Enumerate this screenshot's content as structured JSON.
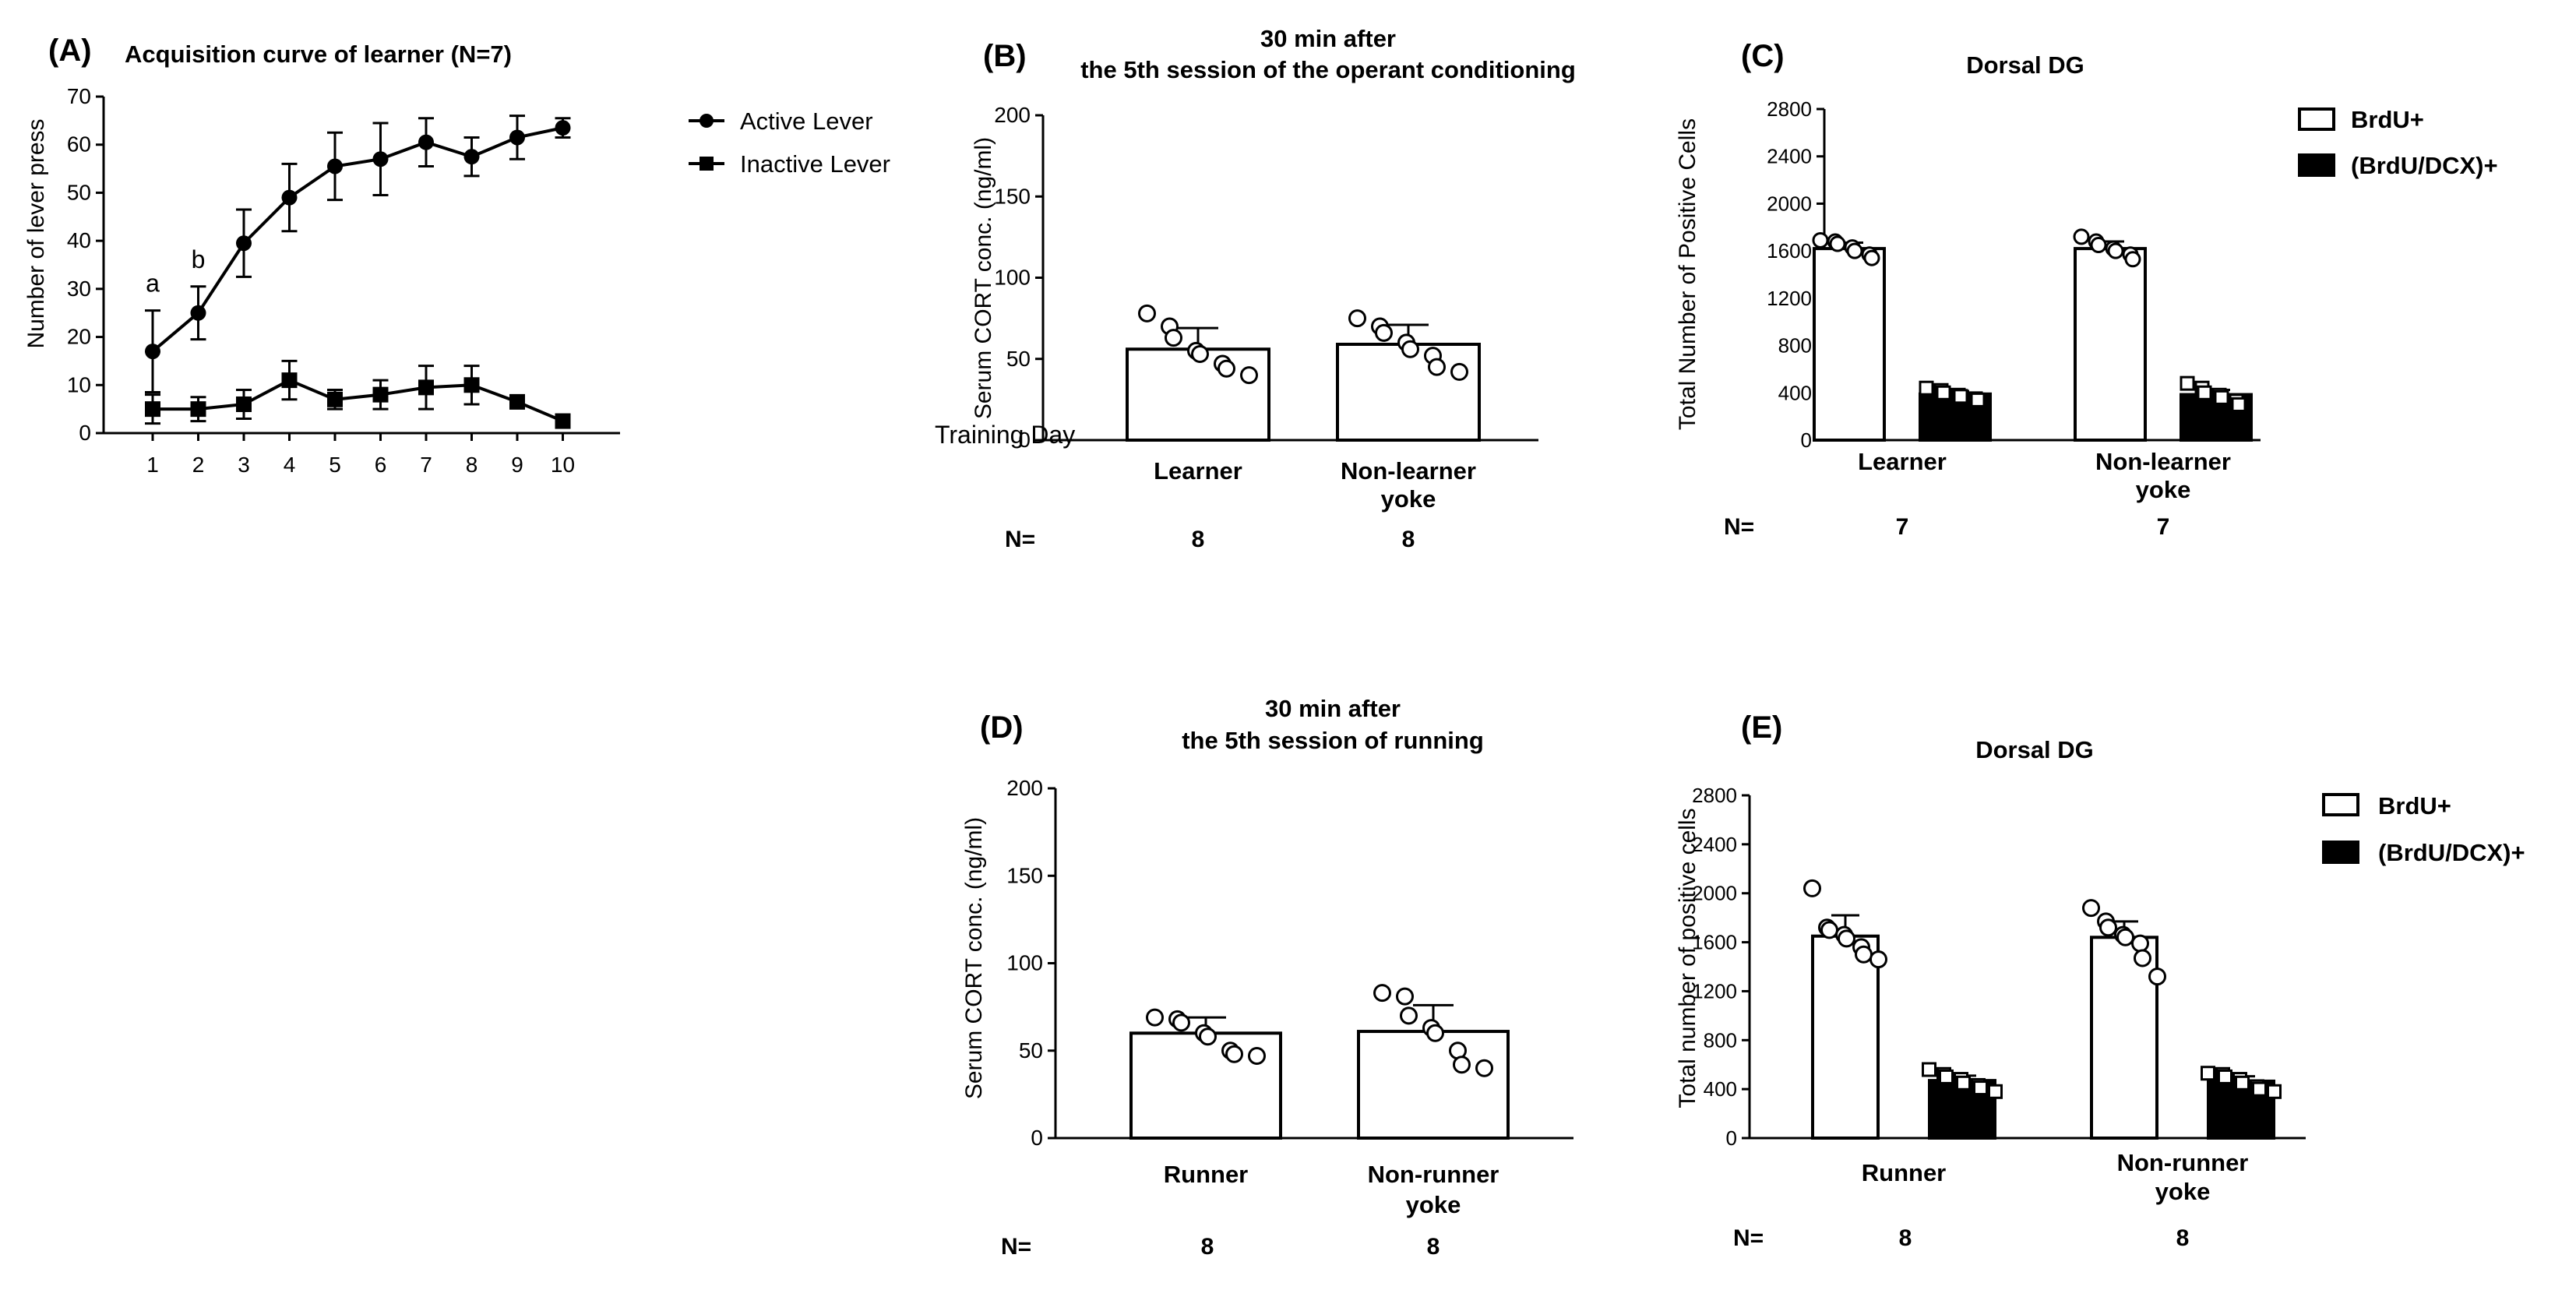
{
  "chart_data": [
    {
      "id": "A",
      "panel_label": "(A)",
      "type": "line",
      "title": "Acquisition curve of learner (N=7)",
      "xlabel": "Training Day",
      "ylabel": "Number of lever press",
      "x": [
        1,
        2,
        3,
        4,
        5,
        6,
        7,
        8,
        9,
        10
      ],
      "xticks": [
        "1",
        "2",
        "3",
        "4",
        "5",
        "6",
        "7",
        "8",
        "9",
        "10"
      ],
      "ylim": [
        0,
        70
      ],
      "yticks": [
        0,
        10,
        20,
        30,
        40,
        50,
        60,
        70
      ],
      "series": [
        {
          "name": "Active Lever",
          "marker": "circle",
          "values": [
            17,
            25,
            39.5,
            49,
            55.5,
            57,
            60.5,
            57.5,
            61.5,
            63.5
          ],
          "errors": [
            8.5,
            5.5,
            7,
            7,
            7,
            7.5,
            5,
            4,
            4.5,
            2
          ]
        },
        {
          "name": "Inactive Lever",
          "marker": "square",
          "values": [
            5,
            5,
            6,
            11,
            7,
            8,
            9.5,
            10,
            6.5,
            2.5
          ],
          "errors": [
            3,
            2.5,
            3,
            4,
            2,
            3,
            4.5,
            4,
            1,
            0.5
          ]
        }
      ],
      "annotations": [
        {
          "text": "a",
          "x": 1
        },
        {
          "text": "b",
          "x": 2
        }
      ]
    },
    {
      "id": "B",
      "panel_label": "(B)",
      "type": "bar",
      "title_lines": [
        "30 min after",
        "the 5th session of the operant conditioning"
      ],
      "ylabel": "Serum CORT conc. (ng/ml)",
      "ylim": [
        0,
        200
      ],
      "yticks": [
        0,
        50,
        100,
        150,
        200
      ],
      "categories": [
        [
          "Learner"
        ],
        [
          "Non-learner",
          "yoke"
        ]
      ],
      "values": [
        56,
        59
      ],
      "errors": [
        13,
        12
      ],
      "points": [
        [
          78,
          70,
          63,
          55,
          53,
          47,
          44,
          40
        ],
        [
          75,
          70,
          66,
          60,
          56,
          52,
          45,
          42
        ]
      ],
      "n_label": "N=",
      "n_values": [
        "8",
        "8"
      ]
    },
    {
      "id": "C",
      "panel_label": "(C)",
      "type": "bar",
      "title": "Dorsal DG",
      "ylabel": "Total Number of Positive Cells",
      "ylim": [
        0,
        2800
      ],
      "yticks": [
        0,
        400,
        800,
        1200,
        1600,
        2000,
        2400,
        2800
      ],
      "categories": [
        [
          "Learner"
        ],
        [
          "Non-learner",
          "yoke"
        ]
      ],
      "series": [
        {
          "name": "BrdU+",
          "fill": "#ffffff",
          "values": [
            1620,
            1620
          ],
          "errors": [
            50,
            60
          ],
          "points": [
            [
              1690,
              1680,
              1660,
              1630,
              1600,
              1570,
              1540
            ],
            [
              1720,
              1680,
              1650,
              1620,
              1600,
              1570,
              1530
            ]
          ]
        },
        {
          "name": "(BrdU/DCX)+",
          "fill": "#000000",
          "values": [
            390,
            385
          ],
          "errors": [
            25,
            40
          ],
          "points": [
            [
              440,
              420,
              400,
              380,
              370,
              350,
              340
            ],
            [
              480,
              440,
              400,
              380,
              360,
              330,
              300
            ]
          ]
        }
      ],
      "n_label": "N=",
      "n_values": [
        "7",
        "7"
      ]
    },
    {
      "id": "D",
      "panel_label": "(D)",
      "type": "bar",
      "title_lines": [
        "30 min after",
        "the 5th session of running"
      ],
      "ylabel": "Serum CORT conc. (ng/ml)",
      "ylim": [
        0,
        200
      ],
      "yticks": [
        0,
        50,
        100,
        150,
        200
      ],
      "categories": [
        [
          "Runner"
        ],
        [
          "Non-runner",
          "yoke"
        ]
      ],
      "values": [
        60,
        61
      ],
      "errors": [
        9,
        15
      ],
      "points": [
        [
          69,
          68,
          66,
          60,
          58,
          50,
          48,
          47
        ],
        [
          83,
          81,
          70,
          63,
          60,
          50,
          42,
          40
        ]
      ],
      "n_label": "N=",
      "n_values": [
        "8",
        "8"
      ]
    },
    {
      "id": "E",
      "panel_label": "(E)",
      "type": "bar",
      "title": "Dorsal DG",
      "ylabel": "Total number of positive cells",
      "ylim": [
        0,
        2800
      ],
      "yticks": [
        0,
        400,
        800,
        1200,
        1600,
        2000,
        2400,
        2800
      ],
      "categories": [
        [
          "Runner"
        ],
        [
          "Non-runner",
          "yoke"
        ]
      ],
      "series": [
        {
          "name": "BrdU+",
          "fill": "#ffffff",
          "values": [
            1650,
            1640
          ],
          "errors": [
            170,
            130
          ],
          "points": [
            [
              2040,
              1720,
              1700,
              1660,
              1630,
              1560,
              1500,
              1460
            ],
            [
              1880,
              1770,
              1720,
              1660,
              1640,
              1590,
              1470,
              1320
            ]
          ]
        },
        {
          "name": "(BrdU/DCX)+",
          "fill": "#000000",
          "values": [
            470,
            465
          ],
          "errors": [
            40,
            40
          ],
          "points": [
            [
              560,
              520,
              500,
              480,
              450,
              430,
              410,
              380
            ],
            [
              530,
              520,
              500,
              480,
              450,
              420,
              400,
              380
            ]
          ]
        }
      ],
      "n_label": "N=",
      "n_values": [
        "8",
        "8"
      ]
    }
  ]
}
